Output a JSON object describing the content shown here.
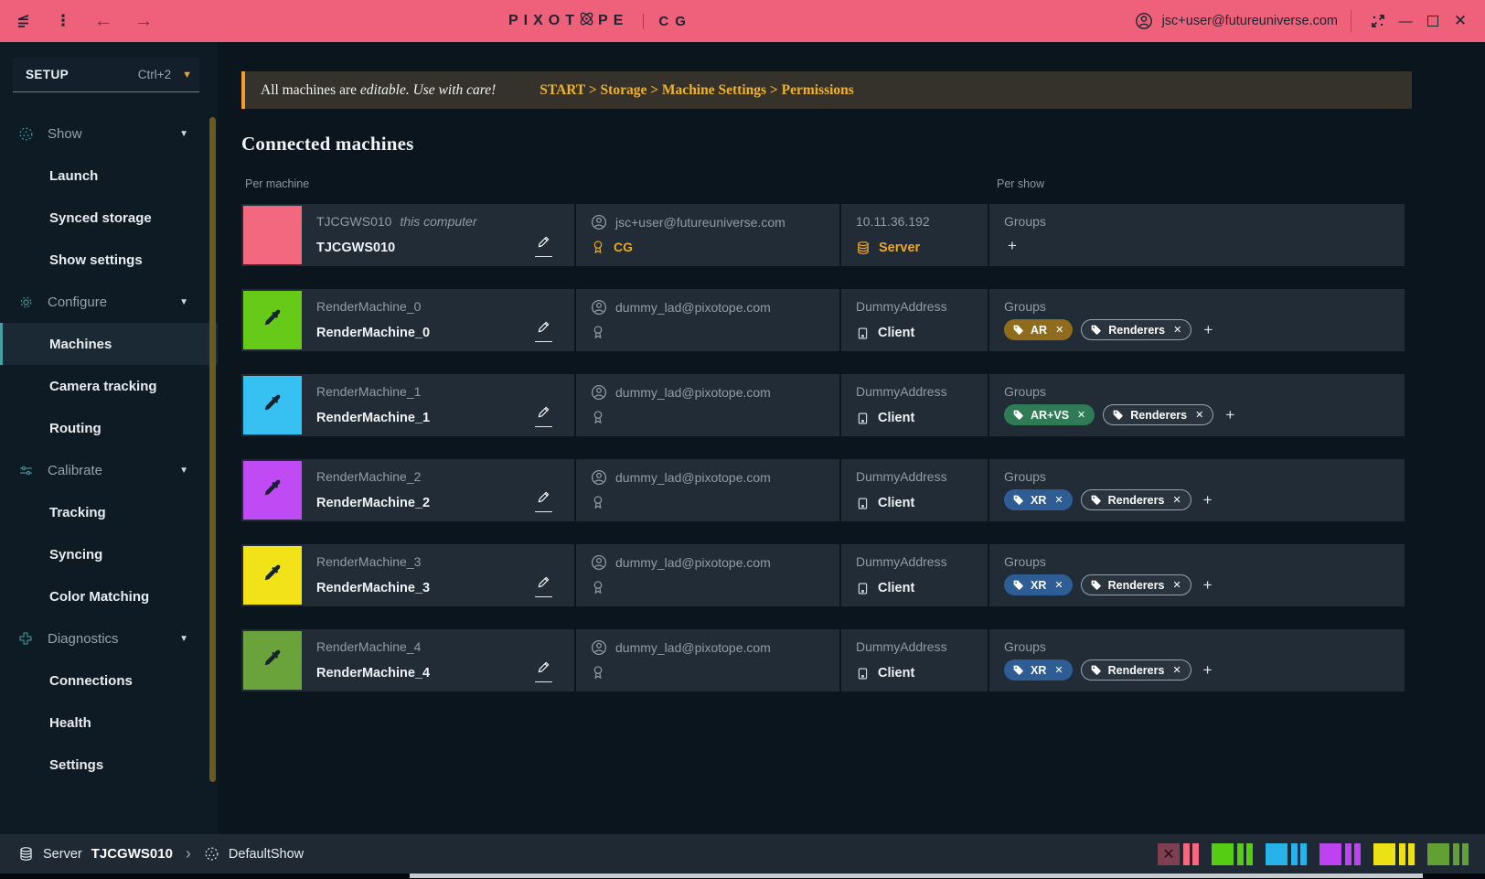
{
  "titlebar": {
    "logo_prefix": "PIXOT",
    "logo_suffix": "PE",
    "product": "CG",
    "user_email": "jsc+user@futureuniverse.com"
  },
  "sidebar": {
    "section_label": "SETUP",
    "section_shortcut": "Ctrl+2",
    "items": [
      {
        "label": "Show",
        "type": "group",
        "icon": "show-icon"
      },
      {
        "label": "Launch",
        "type": "child"
      },
      {
        "label": "Synced storage",
        "type": "child"
      },
      {
        "label": "Show settings",
        "type": "child"
      },
      {
        "label": "Configure",
        "type": "group",
        "icon": "gear-icon"
      },
      {
        "label": "Machines",
        "type": "child",
        "active": true
      },
      {
        "label": "Camera tracking",
        "type": "child"
      },
      {
        "label": "Routing",
        "type": "child"
      },
      {
        "label": "Calibrate",
        "type": "group",
        "icon": "sliders-icon"
      },
      {
        "label": "Tracking",
        "type": "child"
      },
      {
        "label": "Syncing",
        "type": "child"
      },
      {
        "label": "Color Matching",
        "type": "child"
      },
      {
        "label": "Diagnostics",
        "type": "group",
        "icon": "diagnostics-icon"
      },
      {
        "label": "Connections",
        "type": "child"
      },
      {
        "label": "Health",
        "type": "child"
      },
      {
        "label": "Settings",
        "type": "child"
      }
    ]
  },
  "banner": {
    "message": "All machines are",
    "message_em": "editable. Use with care!",
    "breadcrumb": "START > Storage > Machine Settings > Permissions"
  },
  "main": {
    "title": "Connected machines",
    "header_machine": "Per machine",
    "header_show": "Per show",
    "groups_label": "Groups",
    "add_label": "+"
  },
  "machines": [
    {
      "swatch": "#f2697f",
      "eyedropper": false,
      "display_name": "TJCGWS010",
      "note": "this computer",
      "name": "TJCGWS010",
      "account": "jsc+user@futureuniverse.com",
      "license": "CG",
      "address": "10.11.36.192",
      "role": "Server",
      "groups": []
    },
    {
      "swatch": "#68ca18",
      "eyedropper": true,
      "display_name": "RenderMachine_0",
      "note": "",
      "name": "RenderMachine_0",
      "account": "dummy_lad@pixotope.com",
      "license": "",
      "address": "DummyAddress",
      "role": "Client",
      "groups": [
        {
          "label": "AR",
          "color": "#8f6c1d"
        },
        {
          "label": "Renderers",
          "color": ""
        }
      ]
    },
    {
      "swatch": "#36c1f2",
      "eyedropper": true,
      "display_name": "RenderMachine_1",
      "note": "",
      "name": "RenderMachine_1",
      "account": "dummy_lad@pixotope.com",
      "license": "",
      "address": "DummyAddress",
      "role": "Client",
      "groups": [
        {
          "label": "AR+VS",
          "color": "#2e7b56"
        },
        {
          "label": "Renderers",
          "color": ""
        }
      ]
    },
    {
      "swatch": "#c04af4",
      "eyedropper": true,
      "display_name": "RenderMachine_2",
      "note": "",
      "name": "RenderMachine_2",
      "account": "dummy_lad@pixotope.com",
      "license": "",
      "address": "DummyAddress",
      "role": "Client",
      "groups": [
        {
          "label": "XR",
          "color": "#2e5d95"
        },
        {
          "label": "Renderers",
          "color": ""
        }
      ]
    },
    {
      "swatch": "#f2e318",
      "eyedropper": true,
      "display_name": "RenderMachine_3",
      "note": "",
      "name": "RenderMachine_3",
      "account": "dummy_lad@pixotope.com",
      "license": "",
      "address": "DummyAddress",
      "role": "Client",
      "groups": [
        {
          "label": "XR",
          "color": "#2e5d95"
        },
        {
          "label": "Renderers",
          "color": ""
        }
      ]
    },
    {
      "swatch": "#6aa23b",
      "eyedropper": true,
      "display_name": "RenderMachine_4",
      "note": "",
      "name": "RenderMachine_4",
      "account": "dummy_lad@pixotope.com",
      "license": "",
      "address": "DummyAddress",
      "role": "Client",
      "groups": [
        {
          "label": "XR",
          "color": "#2e5d95"
        },
        {
          "label": "Renderers",
          "color": ""
        }
      ]
    }
  ],
  "statusbar": {
    "server_label": "Server",
    "server_name": "TJCGWS010",
    "show_name": "DefaultShow",
    "indicators": [
      {
        "square": "#7e4050",
        "bars": "#f4697f",
        "crossed": true
      },
      {
        "square": "#55cd12",
        "bars": "#55cd12",
        "crossed": false
      },
      {
        "square": "#27b3ea",
        "bars": "#27b3ea",
        "crossed": false
      },
      {
        "square": "#bc42f2",
        "bars": "#bc42f2",
        "crossed": false
      },
      {
        "square": "#ece114",
        "bars": "#ece114",
        "crossed": false
      },
      {
        "square": "#62a033",
        "bars": "#62a033",
        "crossed": false
      }
    ]
  }
}
